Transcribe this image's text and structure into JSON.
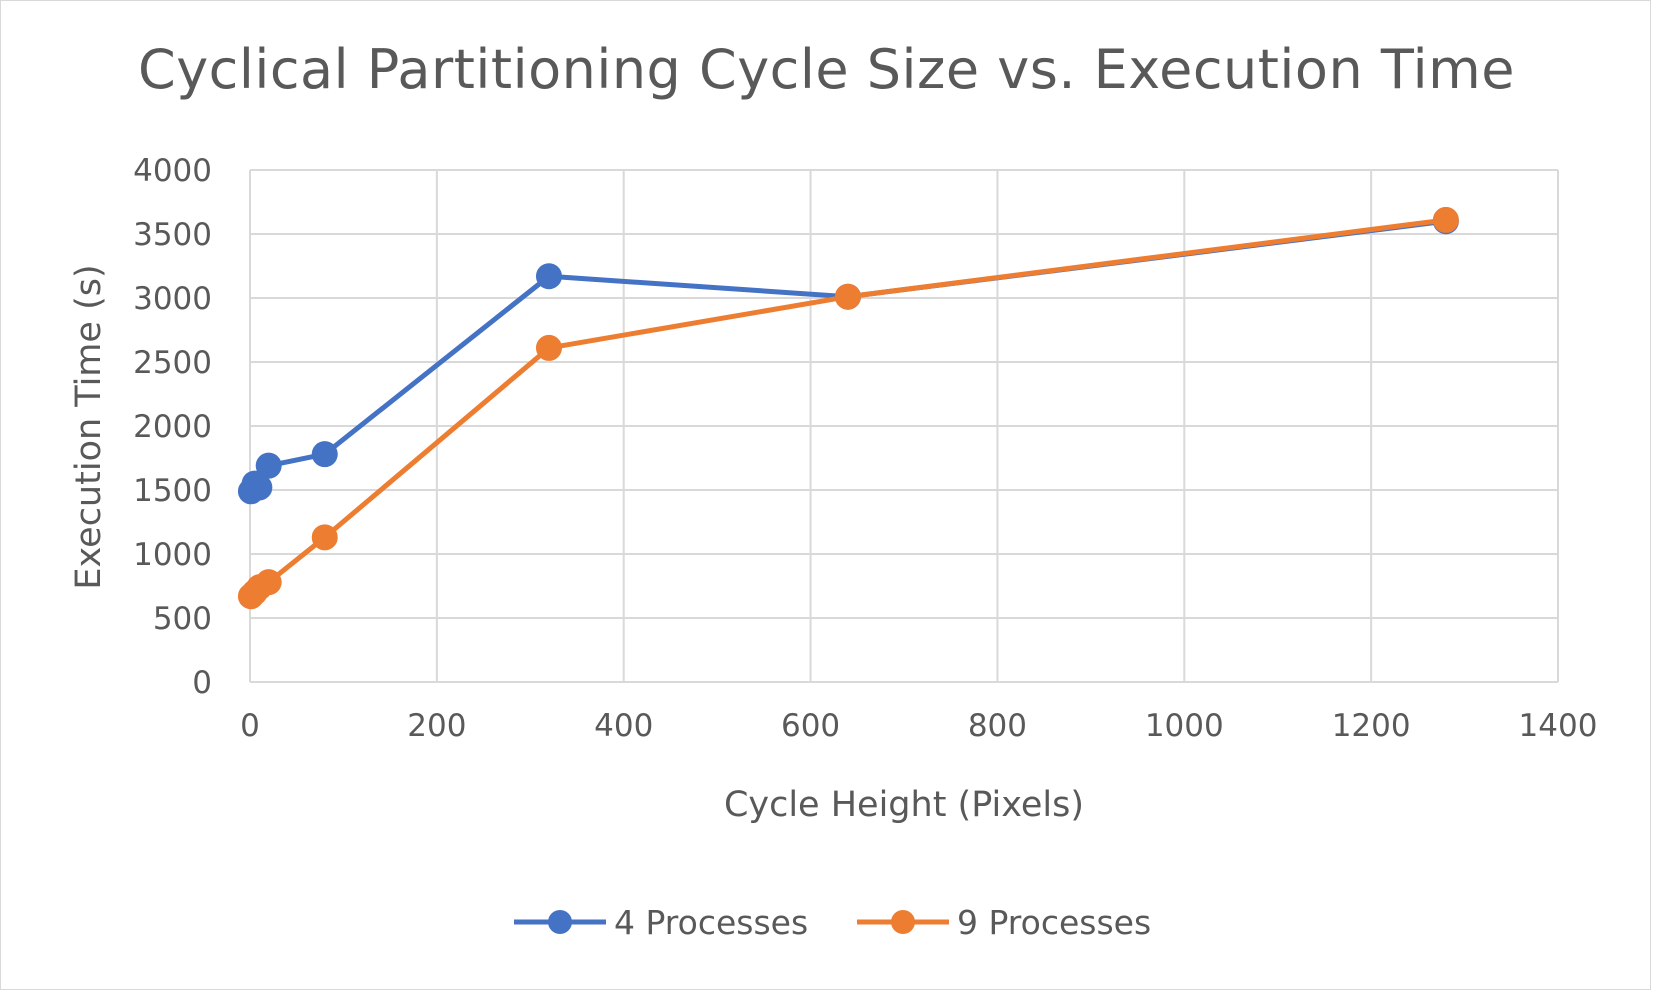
{
  "chart_data": {
    "type": "scatter",
    "title": "Cyclical Partitioning Cycle Size vs. Execution Time",
    "xlabel": "Cycle Height (Pixels)",
    "ylabel": "Execution Time (s)",
    "xlim": [
      0,
      1400
    ],
    "ylim": [
      0,
      4000
    ],
    "xticks": [
      "0",
      "200",
      "400",
      "600",
      "800",
      "1000",
      "1200",
      "1400"
    ],
    "yticks": [
      "0",
      "500",
      "1000",
      "1500",
      "2000",
      "2500",
      "3000",
      "3500",
      "4000"
    ],
    "grid": true,
    "legend_position": "bottom",
    "series": [
      {
        "name": "4 Processes",
        "color": "#4472c4",
        "points": [
          [
            1,
            1490
          ],
          [
            5,
            1550
          ],
          [
            10,
            1520
          ],
          [
            20,
            1690
          ],
          [
            80,
            1780
          ],
          [
            320,
            3170
          ],
          [
            640,
            3010
          ],
          [
            1280,
            3600
          ]
        ]
      },
      {
        "name": "9 Processes",
        "color": "#ed7d31",
        "points": [
          [
            1,
            670
          ],
          [
            5,
            700
          ],
          [
            10,
            740
          ],
          [
            20,
            780
          ],
          [
            80,
            1130
          ],
          [
            320,
            2610
          ],
          [
            640,
            3010
          ],
          [
            1280,
            3610
          ]
        ]
      }
    ]
  }
}
